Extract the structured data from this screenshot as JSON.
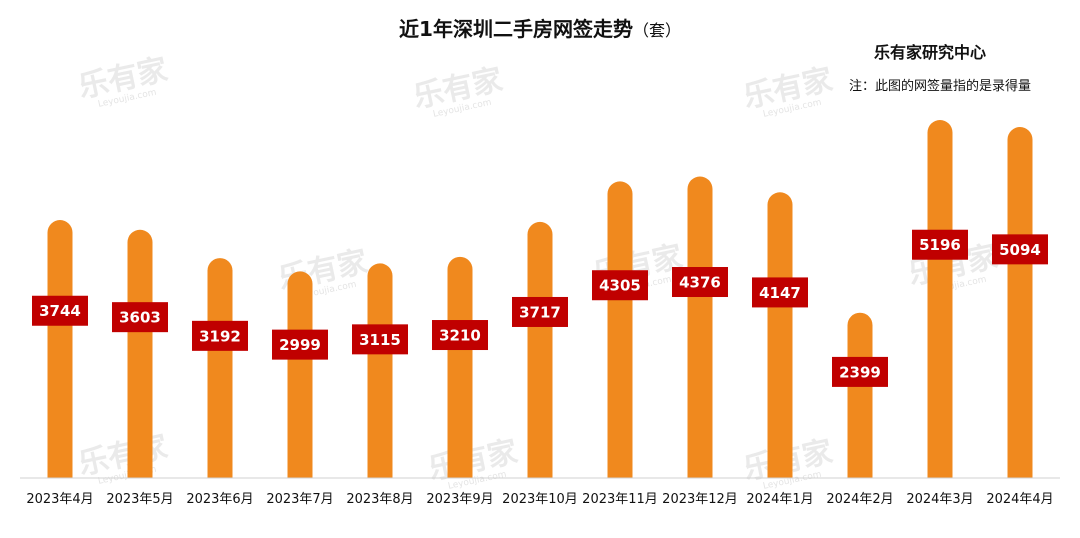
{
  "chart_data": {
    "type": "bar",
    "title": "近1年深圳二手房网签走势",
    "title_unit": "（套）",
    "source": "乐有家研究中心",
    "note": "注：此图的网签量指的是录得量",
    "categories": [
      "2023年4月",
      "2023年5月",
      "2023年6月",
      "2023年7月",
      "2023年8月",
      "2023年9月",
      "2023年10月",
      "2023年11月",
      "2023年12月",
      "2024年1月",
      "2024年2月",
      "2024年3月",
      "2024年4月"
    ],
    "values": [
      3744,
      3603,
      3192,
      2999,
      3115,
      3210,
      3717,
      4305,
      4376,
      4147,
      2399,
      5196,
      5094
    ],
    "xlabel": "",
    "ylabel": "",
    "ylim": [
      0,
      5500
    ],
    "grid": false,
    "legend": "none",
    "bar_color": "#f0891e",
    "label_box_color": "#c00000",
    "label_text_color": "#ffffff",
    "watermark": {
      "brand": "乐有家",
      "site": "Leyoujia.com"
    }
  }
}
